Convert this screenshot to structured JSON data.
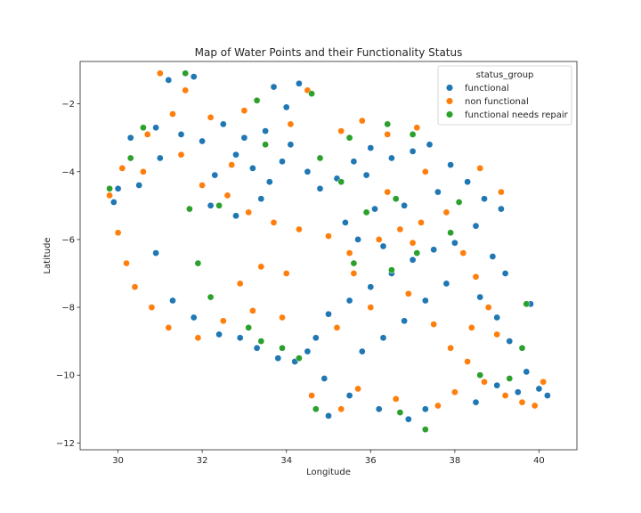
{
  "chart_data": {
    "type": "scatter",
    "title": "Map of Water Points and their Functionality Status",
    "xlabel": "Longitude",
    "ylabel": "Latitude",
    "xlim": [
      29.1,
      40.9
    ],
    "ylim": [
      -12.2,
      -0.75
    ],
    "xticks": [
      30,
      32,
      34,
      36,
      38,
      40
    ],
    "yticks": [
      -2,
      -4,
      -6,
      -8,
      -10,
      -12
    ],
    "xtick_labels": [
      "30",
      "32",
      "34",
      "36",
      "38",
      "40"
    ],
    "ytick_labels": [
      "−2",
      "−4",
      "−6",
      "−8",
      "−10",
      "−12"
    ],
    "grid": false,
    "legend": {
      "title": "status_group",
      "placement": "top-right",
      "entries": [
        "functional",
        "non functional",
        "functional needs repair"
      ]
    },
    "colors": {
      "functional": "#1f77b4",
      "non functional": "#ff7f0e",
      "functional needs repair": "#2ca02c"
    },
    "series": [
      {
        "name": "functional",
        "points": [
          [
            31.2,
            -1.3
          ],
          [
            31.8,
            -1.2
          ],
          [
            30.9,
            -2.7
          ],
          [
            31.5,
            -2.9
          ],
          [
            30.3,
            -3.0
          ],
          [
            32.5,
            -2.6
          ],
          [
            33.0,
            -3.0
          ],
          [
            33.5,
            -2.8
          ],
          [
            32.8,
            -3.5
          ],
          [
            33.2,
            -3.9
          ],
          [
            32.3,
            -4.1
          ],
          [
            33.6,
            -4.3
          ],
          [
            34.1,
            -3.2
          ],
          [
            33.9,
            -3.7
          ],
          [
            34.5,
            -4.0
          ],
          [
            34.8,
            -4.5
          ],
          [
            35.2,
            -4.2
          ],
          [
            35.6,
            -3.7
          ],
          [
            36.0,
            -3.3
          ],
          [
            35.9,
            -4.1
          ],
          [
            36.5,
            -3.6
          ],
          [
            37.0,
            -3.4
          ],
          [
            37.4,
            -3.2
          ],
          [
            37.9,
            -3.8
          ],
          [
            38.3,
            -4.3
          ],
          [
            38.7,
            -4.8
          ],
          [
            39.1,
            -5.1
          ],
          [
            38.5,
            -5.6
          ],
          [
            38.0,
            -6.1
          ],
          [
            37.5,
            -6.3
          ],
          [
            37.0,
            -6.6
          ],
          [
            36.5,
            -7.0
          ],
          [
            36.0,
            -7.4
          ],
          [
            35.5,
            -7.8
          ],
          [
            35.0,
            -8.2
          ],
          [
            34.7,
            -8.9
          ],
          [
            34.5,
            -9.3
          ],
          [
            34.2,
            -9.6
          ],
          [
            33.8,
            -9.5
          ],
          [
            33.3,
            -9.2
          ],
          [
            32.9,
            -8.9
          ],
          [
            32.4,
            -8.8
          ],
          [
            31.8,
            -8.3
          ],
          [
            31.3,
            -7.8
          ],
          [
            30.9,
            -6.4
          ],
          [
            30.0,
            -4.5
          ],
          [
            29.9,
            -4.9
          ],
          [
            30.5,
            -4.4
          ],
          [
            34.9,
            -10.1
          ],
          [
            35.5,
            -10.6
          ],
          [
            36.2,
            -11.0
          ],
          [
            35.0,
            -11.2
          ],
          [
            36.9,
            -11.3
          ],
          [
            37.3,
            -11.0
          ],
          [
            38.5,
            -10.8
          ],
          [
            39.0,
            -10.3
          ],
          [
            39.5,
            -10.5
          ],
          [
            40.0,
            -10.4
          ],
          [
            40.2,
            -10.6
          ],
          [
            39.7,
            -9.9
          ],
          [
            39.3,
            -9.0
          ],
          [
            39.0,
            -8.3
          ],
          [
            38.6,
            -7.7
          ],
          [
            39.2,
            -7.0
          ],
          [
            38.9,
            -6.5
          ],
          [
            37.8,
            -7.3
          ],
          [
            37.3,
            -7.8
          ],
          [
            36.8,
            -8.4
          ],
          [
            36.3,
            -8.9
          ],
          [
            35.8,
            -9.3
          ],
          [
            33.7,
            -1.5
          ],
          [
            34.3,
            -1.4
          ],
          [
            34.0,
            -2.1
          ],
          [
            32.0,
            -3.1
          ],
          [
            31.0,
            -3.6
          ],
          [
            32.2,
            -5.0
          ],
          [
            32.8,
            -5.3
          ],
          [
            33.4,
            -4.8
          ],
          [
            36.1,
            -5.1
          ],
          [
            36.8,
            -5.0
          ],
          [
            37.6,
            -4.6
          ],
          [
            35.4,
            -5.5
          ],
          [
            36.3,
            -6.2
          ],
          [
            35.7,
            -6.0
          ],
          [
            39.8,
            -7.9
          ]
        ]
      },
      {
        "name": "non functional",
        "points": [
          [
            31.0,
            -1.1
          ],
          [
            31.6,
            -1.6
          ],
          [
            31.3,
            -2.3
          ],
          [
            30.7,
            -2.9
          ],
          [
            32.2,
            -2.4
          ],
          [
            32.7,
            -3.8
          ],
          [
            32.0,
            -4.4
          ],
          [
            32.6,
            -4.7
          ],
          [
            33.1,
            -5.2
          ],
          [
            33.7,
            -5.5
          ],
          [
            34.3,
            -5.7
          ],
          [
            35.0,
            -5.9
          ],
          [
            35.5,
            -6.4
          ],
          [
            36.2,
            -6.0
          ],
          [
            36.7,
            -5.7
          ],
          [
            37.2,
            -5.5
          ],
          [
            37.8,
            -5.2
          ],
          [
            38.2,
            -6.4
          ],
          [
            38.5,
            -7.1
          ],
          [
            38.8,
            -8.0
          ],
          [
            39.0,
            -8.8
          ],
          [
            38.3,
            -9.6
          ],
          [
            38.7,
            -10.2
          ],
          [
            39.2,
            -10.6
          ],
          [
            39.6,
            -10.8
          ],
          [
            38.0,
            -10.5
          ],
          [
            37.6,
            -10.9
          ],
          [
            36.6,
            -10.7
          ],
          [
            35.7,
            -10.4
          ],
          [
            35.3,
            -11.0
          ],
          [
            34.6,
            -10.6
          ],
          [
            33.9,
            -8.3
          ],
          [
            33.2,
            -8.1
          ],
          [
            32.5,
            -8.4
          ],
          [
            31.9,
            -8.9
          ],
          [
            31.2,
            -8.6
          ],
          [
            30.8,
            -8.0
          ],
          [
            30.4,
            -7.4
          ],
          [
            30.2,
            -6.7
          ],
          [
            30.0,
            -5.8
          ],
          [
            29.8,
            -4.7
          ],
          [
            30.6,
            -4.0
          ],
          [
            31.5,
            -3.5
          ],
          [
            30.1,
            -3.9
          ],
          [
            34.5,
            -1.6
          ],
          [
            34.1,
            -2.6
          ],
          [
            33.0,
            -2.2
          ],
          [
            35.3,
            -2.8
          ],
          [
            35.8,
            -2.5
          ],
          [
            36.4,
            -2.9
          ],
          [
            37.1,
            -2.7
          ],
          [
            35.6,
            -7.0
          ],
          [
            35.2,
            -8.6
          ],
          [
            36.0,
            -8.0
          ],
          [
            36.9,
            -7.6
          ],
          [
            37.5,
            -8.5
          ],
          [
            37.9,
            -9.2
          ],
          [
            33.4,
            -6.8
          ],
          [
            32.9,
            -7.3
          ],
          [
            34.0,
            -7.0
          ],
          [
            36.4,
            -4.6
          ],
          [
            37.3,
            -4.0
          ],
          [
            38.6,
            -3.9
          ],
          [
            39.1,
            -4.6
          ],
          [
            40.1,
            -10.2
          ],
          [
            39.9,
            -10.9
          ],
          [
            38.4,
            -8.6
          ],
          [
            37.0,
            -6.1
          ]
        ]
      },
      {
        "name": "functional needs repair",
        "points": [
          [
            29.8,
            -4.5
          ],
          [
            30.3,
            -3.6
          ],
          [
            30.6,
            -2.7
          ],
          [
            31.6,
            -1.1
          ],
          [
            33.5,
            -3.2
          ],
          [
            34.8,
            -3.6
          ],
          [
            35.5,
            -3.0
          ],
          [
            36.4,
            -2.6
          ],
          [
            37.0,
            -2.9
          ],
          [
            32.4,
            -5.0
          ],
          [
            31.7,
            -5.1
          ],
          [
            31.9,
            -6.7
          ],
          [
            32.2,
            -7.7
          ],
          [
            33.1,
            -8.6
          ],
          [
            33.4,
            -9.0
          ],
          [
            33.9,
            -9.2
          ],
          [
            34.3,
            -9.5
          ],
          [
            35.6,
            -6.7
          ],
          [
            36.5,
            -6.9
          ],
          [
            37.1,
            -6.4
          ],
          [
            35.9,
            -5.2
          ],
          [
            36.6,
            -4.8
          ],
          [
            35.3,
            -4.3
          ],
          [
            34.7,
            -11.0
          ],
          [
            36.7,
            -11.1
          ],
          [
            37.3,
            -11.6
          ],
          [
            38.6,
            -10.0
          ],
          [
            39.3,
            -10.1
          ],
          [
            39.7,
            -7.9
          ],
          [
            39.6,
            -9.2
          ],
          [
            34.6,
            -1.7
          ],
          [
            37.9,
            -5.8
          ],
          [
            33.3,
            -1.9
          ],
          [
            38.1,
            -4.9
          ]
        ]
      }
    ]
  }
}
